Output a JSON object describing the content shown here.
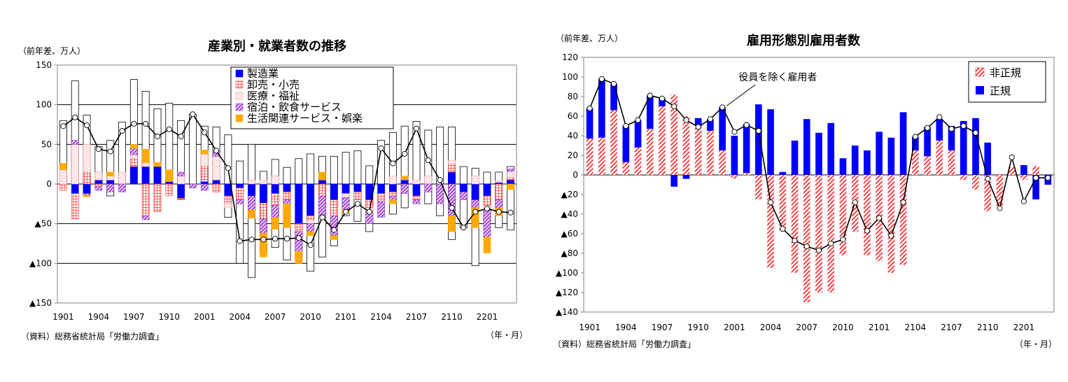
{
  "chart_data": [
    {
      "type": "bar",
      "stacked": true,
      "title": "産業別・就業者数の推移",
      "ylabel": "（前年差、万人）",
      "xunit": "（年・月）",
      "source": "（資料）総務省統計局「労働力調査」",
      "ylim": [
        -150,
        150
      ],
      "yticks": [
        150,
        100,
        50,
        0,
        -50,
        -100,
        -150
      ],
      "ytick_labels": [
        "150",
        "100",
        "50",
        "0",
        "▲50",
        "▲100",
        "▲150"
      ],
      "xtick_labels": [
        "1901",
        "1904",
        "1907",
        "1910",
        "2001",
        "2004",
        "2007",
        "2010",
        "2101",
        "2104",
        "2107",
        "2110",
        "2201"
      ],
      "xtick_every": 3,
      "legend_position": "top-center",
      "grid": true,
      "categories": [
        "1901",
        "1902",
        "1903",
        "1904",
        "1905",
        "1906",
        "1907",
        "1908",
        "1909",
        "1910",
        "1911",
        "1912",
        "2001",
        "2002",
        "2003",
        "2004",
        "2005",
        "2006",
        "2007",
        "2008",
        "2009",
        "2010",
        "2011",
        "2012",
        "2101",
        "2102",
        "2103",
        "2104",
        "2105",
        "2106",
        "2107",
        "2108",
        "2109",
        "2110",
        "2111",
        "2112",
        "2201",
        "2202",
        "2203"
      ],
      "series": [
        {
          "name": "製造業",
          "color": "#0000ff",
          "pattern": "solid",
          "values": [
            0,
            -12,
            -12,
            5,
            5,
            0,
            22,
            22,
            22,
            3,
            -18,
            0,
            3,
            5,
            -15,
            -5,
            -15,
            -24,
            -12,
            -10,
            -50,
            -40,
            5,
            -20,
            -12,
            -10,
            -20,
            -12,
            -10,
            5,
            -15,
            0,
            0,
            15,
            -10,
            -20,
            -15,
            2,
            5
          ]
        },
        {
          "name": "卸売・小売",
          "color": "#ff3333",
          "pattern": "grid",
          "values": [
            -8,
            -32,
            15,
            -3,
            0,
            0,
            10,
            -40,
            -35,
            -15,
            -2,
            0,
            20,
            -10,
            -10,
            -15,
            0,
            -20,
            -15,
            -10,
            -10,
            -5,
            -15,
            -20,
            0,
            -10,
            -10,
            -10,
            -5,
            0,
            -5,
            0,
            0,
            10,
            0,
            0,
            -12,
            -20,
            3
          ]
        },
        {
          "name": "医療・福祉",
          "color": "#ff9999",
          "pattern": "dots",
          "values": [
            18,
            50,
            35,
            10,
            5,
            15,
            5,
            5,
            0,
            0,
            10,
            0,
            15,
            30,
            -5,
            0,
            5,
            5,
            10,
            0,
            0,
            -5,
            0,
            0,
            -5,
            0,
            -5,
            0,
            10,
            0,
            5,
            10,
            0,
            5,
            0,
            10,
            -5,
            2,
            8
          ]
        },
        {
          "name": "宿泊・飲食サービス",
          "color": "#9933cc",
          "pattern": "diagonal",
          "values": [
            0,
            5,
            -2,
            -5,
            -10,
            -10,
            8,
            -5,
            0,
            0,
            5,
            -5,
            -8,
            5,
            0,
            -5,
            -18,
            -18,
            -15,
            -5,
            -25,
            -10,
            -25,
            -25,
            -15,
            0,
            -15,
            -20,
            -5,
            -12,
            -5,
            -10,
            -25,
            -40,
            -10,
            -10,
            -35,
            -10,
            3
          ]
        },
        {
          "name": "生活関連サービス・娯楽",
          "color": "#ffaa00",
          "pattern": "solid",
          "values": [
            8,
            0,
            -2,
            0,
            5,
            0,
            5,
            17,
            5,
            15,
            0,
            0,
            5,
            0,
            0,
            0,
            -10,
            -30,
            -15,
            -30,
            -15,
            -5,
            10,
            -5,
            -5,
            0,
            0,
            0,
            -5,
            5,
            0,
            0,
            0,
            -20,
            0,
            -25,
            -20,
            -10,
            -7
          ]
        }
      ],
      "total_outline_values": [
        80,
        130,
        87,
        47,
        55,
        78,
        132,
        117,
        95,
        102,
        80,
        88,
        73,
        72,
        62,
        29,
        50,
        16,
        31,
        21,
        32,
        38,
        35,
        35,
        40,
        42,
        23,
        55,
        65,
        73,
        79,
        68,
        72,
        72,
        22,
        20,
        15,
        15,
        22
      ],
      "total_negative_outline_values": [
        0,
        0,
        -15,
        0,
        -15,
        0,
        0,
        0,
        0,
        0,
        0,
        0,
        0,
        0,
        -42,
        -100,
        -118,
        -86,
        -80,
        -96,
        -95,
        -110,
        -92,
        -78,
        -40,
        -47,
        -60,
        0,
        -38,
        -30,
        0,
        -25,
        -40,
        -70,
        -55,
        -103,
        -47,
        -55,
        -58
      ],
      "line": {
        "name": "就業者数",
        "values": [
          73,
          84,
          74,
          44,
          41,
          67,
          76,
          76,
          60,
          69,
          60,
          88,
          65,
          42,
          20,
          -72,
          -70,
          -70,
          -69,
          -69,
          -68,
          -77,
          -42,
          -58,
          -35,
          -25,
          -35,
          45,
          26,
          38,
          70,
          30,
          5,
          -30,
          -55,
          -35,
          -31,
          -35,
          -36
        ]
      }
    },
    {
      "type": "bar",
      "stacked": true,
      "title": "雇用形態別雇用者数",
      "ylabel": "（前年差、万人）",
      "xunit": "（年・月）",
      "source": "（資料）総務省統計局「労働力調査」",
      "ylim": [
        -140,
        120
      ],
      "yticks": [
        120,
        100,
        80,
        60,
        40,
        20,
        0,
        -20,
        -40,
        -60,
        -80,
        -100,
        -120,
        -140
      ],
      "ytick_labels": [
        "120",
        "100",
        "80",
        "60",
        "40",
        "20",
        "0",
        "▲20",
        "▲40",
        "▲60",
        "▲80",
        "▲100",
        "▲120",
        "▲140"
      ],
      "xtick_labels": [
        "1901",
        "1904",
        "1907",
        "1910",
        "2001",
        "2004",
        "2007",
        "2010",
        "2101",
        "2104",
        "2107",
        "2110",
        "2201"
      ],
      "xtick_every": 3,
      "legend_position": "top-right",
      "grid": false,
      "annotation": "役員を除く雇用者",
      "categories": [
        "1901",
        "1902",
        "1903",
        "1904",
        "1905",
        "1906",
        "1907",
        "1908",
        "1909",
        "1910",
        "1911",
        "1912",
        "2001",
        "2002",
        "2003",
        "2004",
        "2005",
        "2006",
        "2007",
        "2008",
        "2009",
        "2010",
        "2011",
        "2012",
        "2101",
        "2102",
        "2103",
        "2104",
        "2105",
        "2106",
        "2107",
        "2108",
        "2109",
        "2110",
        "2111",
        "2112",
        "2201",
        "2202",
        "2203"
      ],
      "series": [
        {
          "name": "非正規",
          "color": "#ff3333",
          "pattern": "diagonal",
          "values": [
            37,
            38,
            66,
            13,
            28,
            47,
            70,
            82,
            60,
            50,
            45,
            25,
            -4,
            2,
            -25,
            -95,
            -58,
            -100,
            -130,
            -120,
            -120,
            -82,
            -58,
            -82,
            -88,
            -100,
            -92,
            25,
            19,
            35,
            25,
            -5,
            -15,
            -37,
            -32,
            8,
            -5,
            9,
            0
          ]
        },
        {
          "name": "正規",
          "color": "#0000ff",
          "pattern": "solid",
          "values": [
            31,
            60,
            27,
            37,
            28,
            34,
            8,
            -12,
            -4,
            8,
            12,
            44,
            40,
            50,
            72,
            67,
            3,
            35,
            57,
            43,
            53,
            17,
            30,
            25,
            44,
            38,
            64,
            14,
            30,
            22,
            25,
            55,
            58,
            33,
            0,
            0,
            10,
            -25,
            -10
          ]
        }
      ],
      "line": {
        "name": "役員を除く雇用者",
        "values": [
          68,
          98,
          93,
          50,
          56,
          81,
          78,
          70,
          56,
          49,
          57,
          69,
          44,
          51,
          45,
          -28,
          -55,
          -67,
          -73,
          -77,
          -70,
          -66,
          -28,
          -57,
          -44,
          -62,
          -28,
          39,
          48,
          59,
          47,
          50,
          43,
          -4,
          -34,
          18,
          -27,
          -3,
          -3
        ]
      }
    }
  ]
}
